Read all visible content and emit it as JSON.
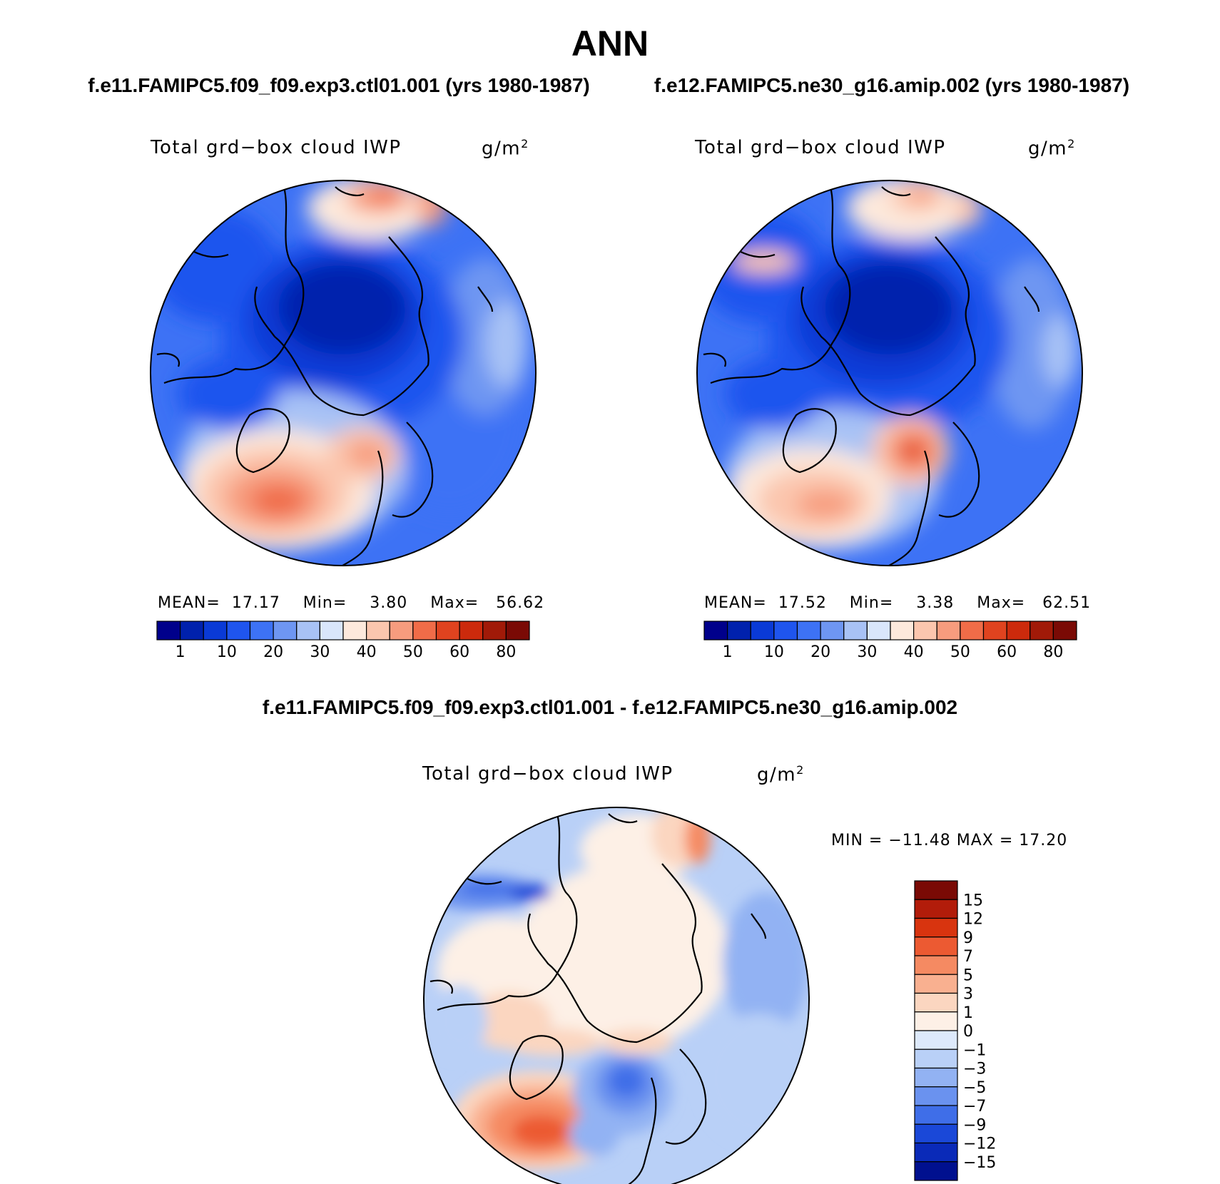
{
  "page": {
    "title": "ANN",
    "case1_heading": "f.e11.FAMIPC5.f09_f09.exp3.ctl01.001 (yrs 1980-1987)",
    "case2_heading": "f.e12.FAMIPC5.ne30_g16.amip.002 (yrs 1980-1987)",
    "diff_heading": "f.e11.FAMIPC5.f09_f09.exp3.ctl01.001 - f.e12.FAMIPC5.ne30_g16.amip.002"
  },
  "chart_data": [
    {
      "type": "heatmap",
      "projection": "polar stereographic (north pole)",
      "variable_label": "Total grd−box cloud IWP",
      "units_label": "g/m",
      "units_superscript": "2",
      "stats": {
        "mean_label": "MEAN=",
        "mean": "17.17",
        "min_label": "Min=",
        "min": "3.80",
        "max_label": "Max=",
        "max": "56.62"
      },
      "colorbar_ticks": [
        "1",
        "10",
        "20",
        "30",
        "40",
        "50",
        "60",
        "80"
      ],
      "colorbar_colors": [
        "#00008b",
        "#0021ad",
        "#0a3ad6",
        "#1f55ee",
        "#3d72f5",
        "#6e96f2",
        "#a8c2f5",
        "#d9e6fb",
        "#fde9dc",
        "#fbc6ae",
        "#f79c7e",
        "#f06c48",
        "#e0431f",
        "#cc2a0c",
        "#a11a08",
        "#7a0a05"
      ]
    },
    {
      "type": "heatmap",
      "projection": "polar stereographic (north pole)",
      "variable_label": "Total grd−box cloud IWP",
      "units_label": "g/m",
      "units_superscript": "2",
      "stats": {
        "mean_label": "MEAN=",
        "mean": "17.52",
        "min_label": "Min=",
        "min": "3.38",
        "max_label": "Max=",
        "max": "62.51"
      },
      "colorbar_ticks": [
        "1",
        "10",
        "20",
        "30",
        "40",
        "50",
        "60",
        "80"
      ],
      "colorbar_colors": [
        "#00008b",
        "#0021ad",
        "#0a3ad6",
        "#1f55ee",
        "#3d72f5",
        "#6e96f2",
        "#a8c2f5",
        "#d9e6fb",
        "#fde9dc",
        "#fbc6ae",
        "#f79c7e",
        "#f06c48",
        "#e0431f",
        "#cc2a0c",
        "#a11a08",
        "#7a0a05"
      ]
    },
    {
      "type": "heatmap",
      "projection": "polar stereographic (north pole)",
      "variable_label": "Total grd−box cloud IWP",
      "units_label": "g/m",
      "units_superscript": "2",
      "stats": {
        "text": "MIN = −11.48  MAX =   17.20"
      },
      "colorbar_ticks": [
        "15",
        "12",
        "9",
        "7",
        "5",
        "3",
        "1",
        "0",
        "−1",
        "−3",
        "−5",
        "−7",
        "−9",
        "−12",
        "−15"
      ],
      "colorbar_colors": [
        "#7a0a05",
        "#b21c0a",
        "#d8340f",
        "#ec5a32",
        "#f58a62",
        "#f9b090",
        "#fbd6c0",
        "#fdf0e6",
        "#dde9fb",
        "#b9d0f7",
        "#92b2f3",
        "#6a92ef",
        "#3f6ee8",
        "#1a48d8",
        "#0a2ab8",
        "#00108f"
      ]
    }
  ]
}
